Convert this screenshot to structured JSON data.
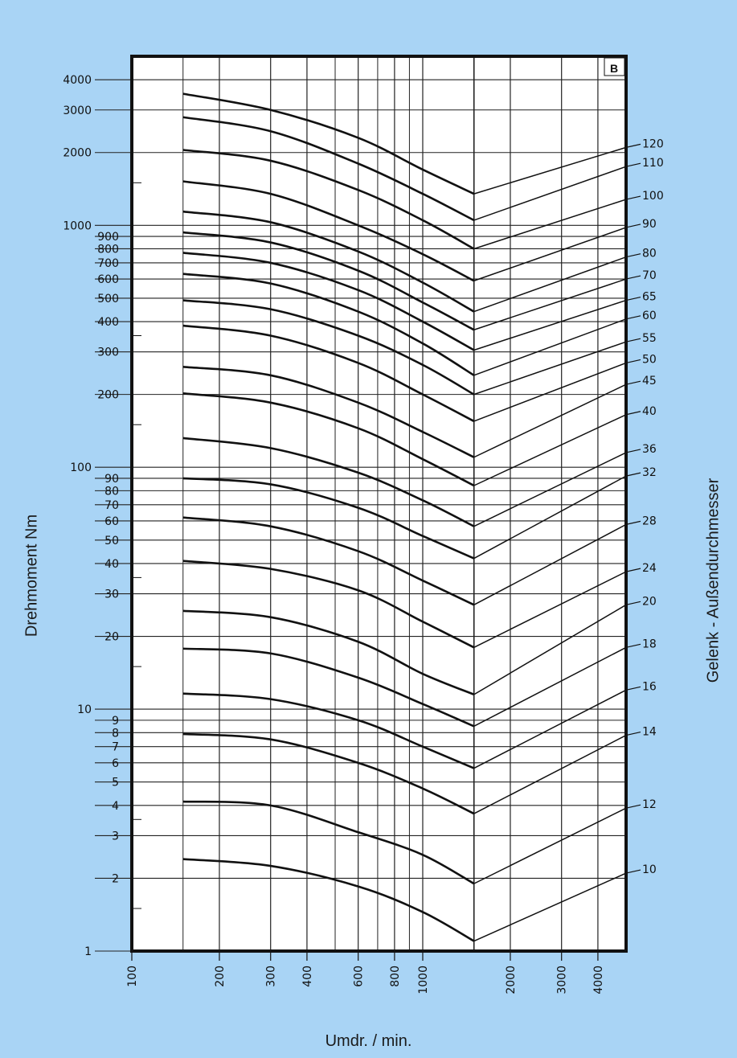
{
  "chart_data": {
    "type": "line",
    "panel_label": "B",
    "xlabel": "Umdr. / min.",
    "ylabel": "Drehmoment Nm",
    "y2label": "Gelenk - Außendurchmesser",
    "x_scale": "log",
    "y_scale": "log",
    "xlim": [
      100,
      5000
    ],
    "ylim": [
      1,
      5000
    ],
    "x_ticks": [
      100,
      200,
      300,
      400,
      600,
      800,
      1000,
      2000,
      3000,
      4000
    ],
    "x_tick_labels": [
      "100",
      "200",
      "300",
      "400",
      "600",
      "800",
      "1000",
      "2000",
      "3000",
      "4000"
    ],
    "y_ticks": [
      1,
      2,
      3,
      4,
      5,
      6,
      7,
      8,
      9,
      10,
      20,
      30,
      40,
      50,
      60,
      70,
      80,
      90,
      100,
      200,
      300,
      400,
      500,
      600,
      700,
      800,
      900,
      1000,
      2000,
      3000,
      4000
    ],
    "y_tick_labels": [
      "1",
      "2",
      "3",
      "4",
      "5",
      "6",
      "7",
      "8",
      "9",
      "10",
      "20",
      "30",
      "40",
      "50",
      "60",
      "70",
      "80",
      "90",
      "100",
      "200",
      "300",
      "400",
      "500",
      "600",
      "700",
      "800",
      "900",
      "1000",
      "2000",
      "3000",
      "4000"
    ],
    "knee_rpm": 1500,
    "series": [
      {
        "name": "120",
        "values": [
          [
            150,
            3500
          ],
          [
            300,
            3000
          ],
          [
            600,
            2300
          ],
          [
            1000,
            1700
          ],
          [
            1500,
            1350
          ],
          [
            5000,
            2100
          ]
        ]
      },
      {
        "name": "110",
        "values": [
          [
            150,
            2800
          ],
          [
            300,
            2450
          ],
          [
            600,
            1800
          ],
          [
            1000,
            1350
          ],
          [
            1500,
            1050
          ],
          [
            5000,
            1750
          ]
        ]
      },
      {
        "name": "100",
        "values": [
          [
            150,
            2050
          ],
          [
            300,
            1850
          ],
          [
            600,
            1400
          ],
          [
            1000,
            1050
          ],
          [
            1500,
            800
          ],
          [
            5000,
            1280
          ]
        ]
      },
      {
        "name": "90",
        "values": [
          [
            150,
            1520
          ],
          [
            300,
            1350
          ],
          [
            600,
            1000
          ],
          [
            1000,
            760
          ],
          [
            1500,
            590
          ],
          [
            5000,
            980
          ]
        ]
      },
      {
        "name": "80",
        "values": [
          [
            150,
            1140
          ],
          [
            300,
            1030
          ],
          [
            600,
            780
          ],
          [
            1000,
            580
          ],
          [
            1500,
            440
          ],
          [
            5000,
            740
          ]
        ]
      },
      {
        "name": "70",
        "values": [
          [
            150,
            935
          ],
          [
            300,
            850
          ],
          [
            600,
            650
          ],
          [
            1000,
            480
          ],
          [
            1500,
            370
          ],
          [
            5000,
            600
          ]
        ]
      },
      {
        "name": "65",
        "values": [
          [
            150,
            770
          ],
          [
            300,
            700
          ],
          [
            600,
            540
          ],
          [
            1000,
            400
          ],
          [
            1500,
            305
          ],
          [
            5000,
            490
          ]
        ]
      },
      {
        "name": "60",
        "values": [
          [
            150,
            630
          ],
          [
            300,
            575
          ],
          [
            600,
            440
          ],
          [
            1000,
            325
          ],
          [
            1500,
            240
          ],
          [
            5000,
            410
          ]
        ]
      },
      {
        "name": "55",
        "values": [
          [
            150,
            490
          ],
          [
            300,
            450
          ],
          [
            600,
            350
          ],
          [
            1000,
            265
          ],
          [
            1500,
            200
          ],
          [
            5000,
            330
          ]
        ]
      },
      {
        "name": "50",
        "values": [
          [
            150,
            385
          ],
          [
            300,
            350
          ],
          [
            600,
            270
          ],
          [
            1000,
            200
          ],
          [
            1500,
            155
          ],
          [
            5000,
            270
          ]
        ]
      },
      {
        "name": "45",
        "values": [
          [
            150,
            260
          ],
          [
            300,
            240
          ],
          [
            600,
            185
          ],
          [
            1000,
            140
          ],
          [
            1500,
            110
          ],
          [
            5000,
            220
          ]
        ]
      },
      {
        "name": "40",
        "values": [
          [
            150,
            202
          ],
          [
            300,
            185
          ],
          [
            600,
            145
          ],
          [
            1000,
            108
          ],
          [
            1500,
            84
          ],
          [
            5000,
            165
          ]
        ]
      },
      {
        "name": "36",
        "values": [
          [
            150,
            132
          ],
          [
            300,
            120
          ],
          [
            600,
            95
          ],
          [
            1000,
            73
          ],
          [
            1500,
            57
          ],
          [
            5000,
            115
          ]
        ]
      },
      {
        "name": "32",
        "values": [
          [
            150,
            90
          ],
          [
            300,
            85
          ],
          [
            600,
            68
          ],
          [
            1000,
            52
          ],
          [
            1500,
            42
          ],
          [
            5000,
            92
          ]
        ]
      },
      {
        "name": "28",
        "values": [
          [
            150,
            62
          ],
          [
            300,
            57
          ],
          [
            600,
            45
          ],
          [
            1000,
            34
          ],
          [
            1500,
            27
          ],
          [
            5000,
            58
          ]
        ]
      },
      {
        "name": "24",
        "values": [
          [
            150,
            41
          ],
          [
            300,
            38
          ],
          [
            600,
            31
          ],
          [
            1000,
            23
          ],
          [
            1500,
            18
          ],
          [
            5000,
            37
          ]
        ]
      },
      {
        "name": "20",
        "values": [
          [
            150,
            25.5
          ],
          [
            300,
            24
          ],
          [
            600,
            19
          ],
          [
            1000,
            14
          ],
          [
            1500,
            11.5
          ],
          [
            5000,
            27
          ]
        ]
      },
      {
        "name": "18",
        "values": [
          [
            150,
            17.8
          ],
          [
            300,
            17
          ],
          [
            600,
            13.5
          ],
          [
            1000,
            10.5
          ],
          [
            1500,
            8.5
          ],
          [
            5000,
            18
          ]
        ]
      },
      {
        "name": "16",
        "values": [
          [
            150,
            11.6
          ],
          [
            300,
            11
          ],
          [
            600,
            9
          ],
          [
            1000,
            7
          ],
          [
            1500,
            5.7
          ],
          [
            5000,
            12
          ]
        ]
      },
      {
        "name": "14",
        "values": [
          [
            150,
            7.9
          ],
          [
            300,
            7.5
          ],
          [
            600,
            6
          ],
          [
            1000,
            4.7
          ],
          [
            1500,
            3.7
          ],
          [
            5000,
            7.8
          ]
        ]
      },
      {
        "name": "12",
        "values": [
          [
            150,
            4.15
          ],
          [
            300,
            4
          ],
          [
            600,
            3.1
          ],
          [
            1000,
            2.5
          ],
          [
            1500,
            1.9
          ],
          [
            5000,
            3.9
          ]
        ]
      },
      {
        "name": "10",
        "values": [
          [
            150,
            2.4
          ],
          [
            300,
            2.25
          ],
          [
            600,
            1.85
          ],
          [
            1000,
            1.45
          ],
          [
            1500,
            1.1
          ],
          [
            5000,
            2.1
          ]
        ]
      }
    ],
    "series_labels": [
      "120",
      "110",
      "100",
      "90",
      "80",
      "70",
      "65",
      "60",
      "55",
      "50",
      "45",
      "40",
      "36",
      "32",
      "28",
      "24",
      "20",
      "18",
      "16",
      "14",
      "12",
      "10"
    ],
    "grid": true,
    "legend": "right"
  }
}
